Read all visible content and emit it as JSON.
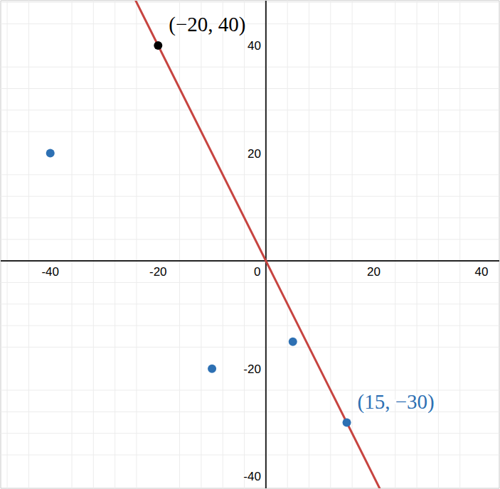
{
  "chart_data": {
    "type": "scatter",
    "xlim": [
      -49.2,
      43.3
    ],
    "ylim": [
      -42.2,
      48.3
    ],
    "xticks": [
      -40,
      -20,
      0,
      20,
      40
    ],
    "yticks": [
      -40,
      -20,
      0,
      20,
      40
    ],
    "grid": true,
    "series": [
      {
        "color": "#2d70b3",
        "marker": "circle",
        "x": [
          -40,
          -10,
          5,
          15
        ],
        "values": [
          20,
          -20,
          -15,
          -30
        ]
      },
      {
        "color": "#000000",
        "marker": "circle",
        "x": [
          -20
        ],
        "values": [
          40
        ]
      }
    ],
    "line": {
      "slope": -2,
      "intercept": 0,
      "color": "#c74440",
      "line_style": "solid"
    },
    "annotations": [
      {
        "text": "(−20, 40)",
        "x": -20,
        "y": 40,
        "color": "#000000"
      },
      {
        "text": "(15, −30)",
        "x": 15,
        "y": -30,
        "color": "#2d70b3"
      }
    ]
  }
}
